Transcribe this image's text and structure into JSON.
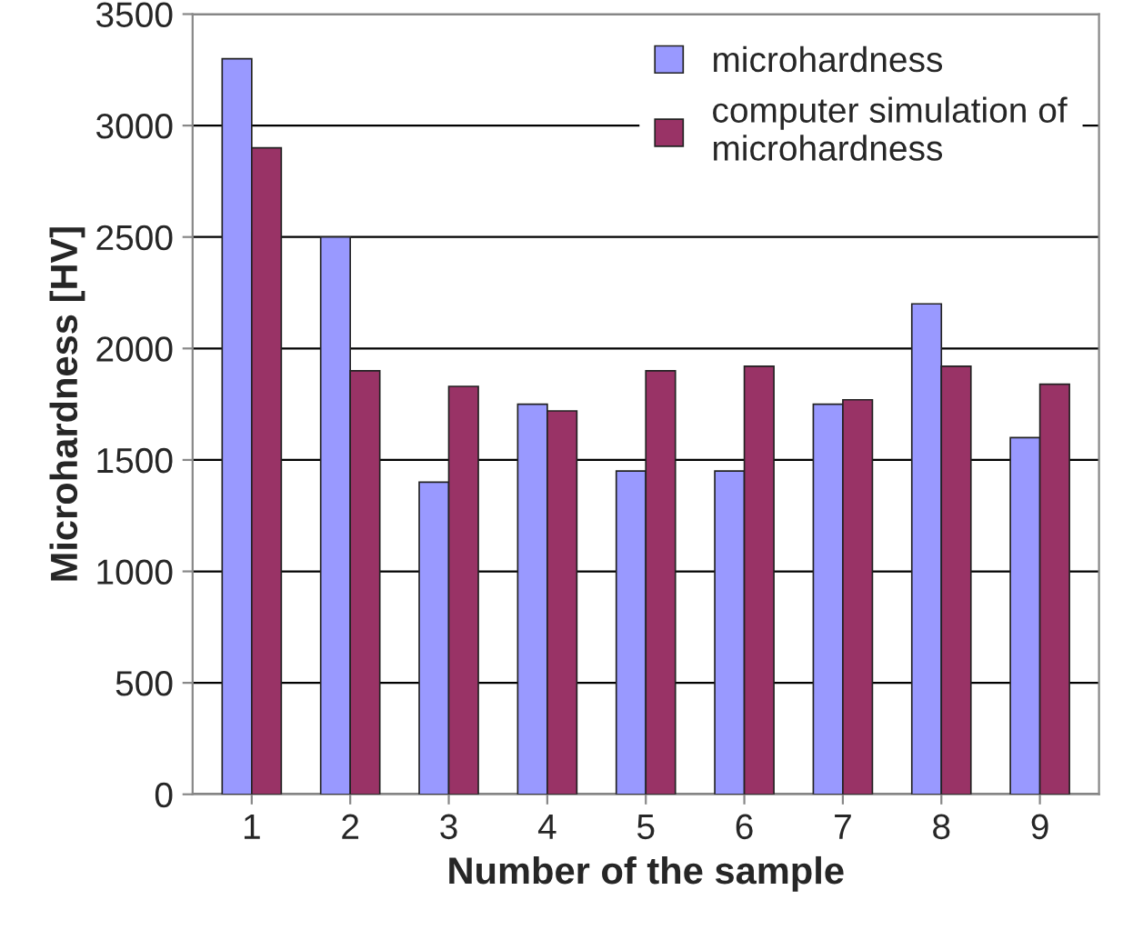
{
  "chart_data": {
    "type": "bar",
    "xlabel": "Number of the sample",
    "ylabel": "Microhardness [HV]",
    "categories": [
      "1",
      "2",
      "3",
      "4",
      "5",
      "6",
      "7",
      "8",
      "9"
    ],
    "series": [
      {
        "name": "microhardness",
        "color": "#9999ff",
        "values": [
          3300,
          2500,
          1400,
          1750,
          1450,
          1450,
          1750,
          2200,
          1600
        ]
      },
      {
        "name": "computer simulation of\nmicrohardness",
        "color": "#993366",
        "values": [
          2900,
          1900,
          1830,
          1720,
          1900,
          1920,
          1770,
          1920,
          1840
        ]
      }
    ],
    "ylim": [
      0,
      3500
    ],
    "yticks": [
      0,
      500,
      1000,
      1500,
      2000,
      2500,
      3000,
      3500
    ],
    "grid": "y",
    "legend": "top right"
  }
}
